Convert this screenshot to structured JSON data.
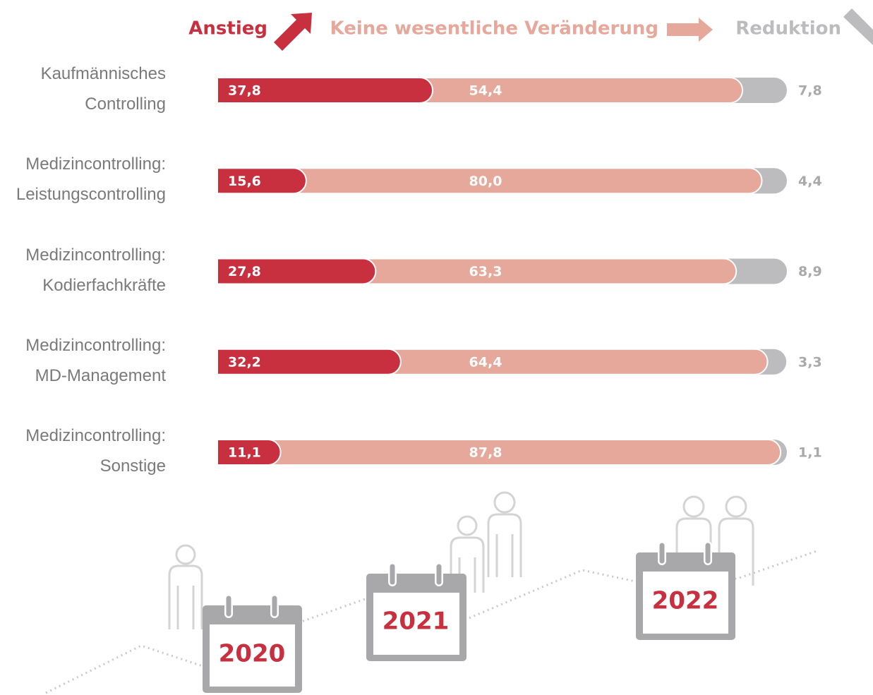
{
  "chart_data": {
    "type": "stacked-bar-horizontal",
    "categories": [
      "Kaufmännisches Controlling",
      "Medizincontrolling: Leistungscontrolling",
      "Medizincontrolling: Kodierfachkräfte",
      "Medizincontrolling: MD-Management",
      "Medizincontrolling: Sonstige"
    ],
    "series": [
      {
        "name": "Anstieg",
        "color": "#c8303f",
        "values": [
          37.8,
          15.6,
          27.8,
          32.2,
          11.1
        ],
        "value_labels": [
          "37,8",
          "15,6",
          "27,8",
          "32,2",
          "11,1"
        ]
      },
      {
        "name": "Keine wesentliche Veränderung",
        "color": "#e5a89b",
        "values": [
          54.4,
          80.0,
          63.3,
          64.4,
          87.8
        ],
        "value_labels": [
          "54,4",
          "80,0",
          "63,3",
          "64,4",
          "87,8"
        ]
      },
      {
        "name": "Reduktion",
        "color": "#bcbcbf",
        "values": [
          7.8,
          4.4,
          8.9,
          3.3,
          1.1
        ],
        "value_labels": [
          "7,8",
          "4,4",
          "8,9",
          "3,3",
          "1,1"
        ]
      }
    ],
    "xlim": [
      0,
      100
    ],
    "annotations": [
      "2020",
      "2021",
      "2022"
    ]
  }
}
